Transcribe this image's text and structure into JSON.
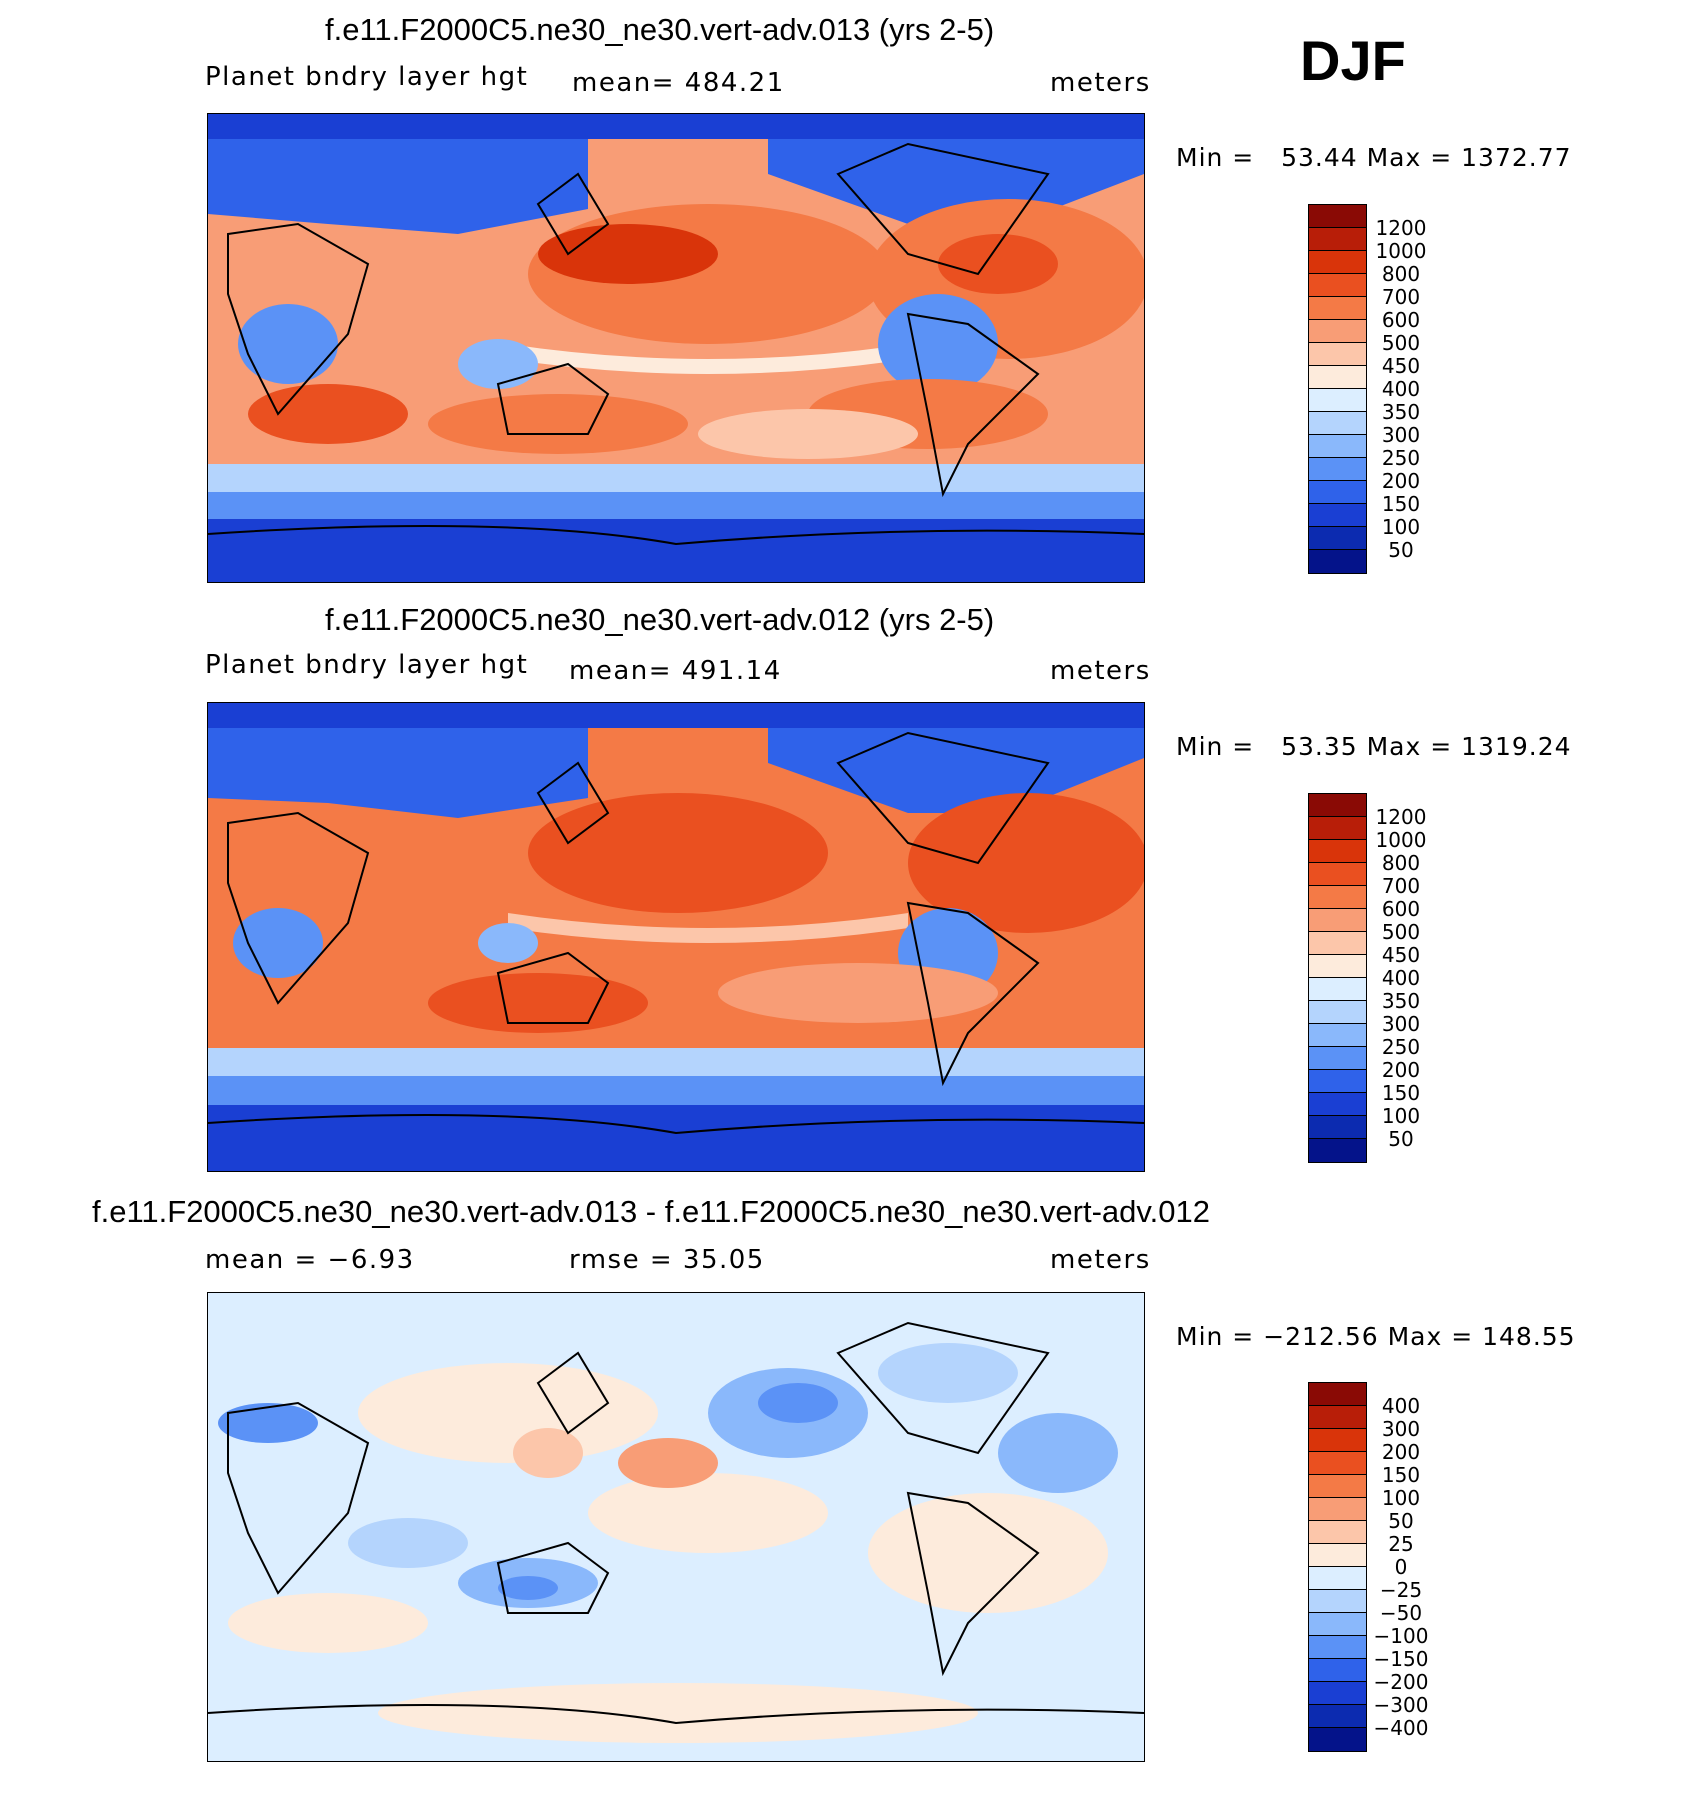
{
  "season": "DJF",
  "panels": [
    {
      "title": "f.e11.F2000C5.ne30_ne30.vert-adv.013 (yrs 2-5)",
      "left_label": "Planet bndry layer hgt",
      "center_label": "mean= 484.21",
      "right_label": "meters",
      "minmax": "Min =   53.44 Max = 1372.77",
      "type": "abs"
    },
    {
      "title": "f.e11.F2000C5.ne30_ne30.vert-adv.012 (yrs 2-5)",
      "left_label": "Planet bndry layer hgt",
      "center_label": "mean= 491.14",
      "right_label": "meters",
      "minmax": "Min =   53.35 Max = 1319.24",
      "type": "abs"
    },
    {
      "title": "f.e11.F2000C5.ne30_ne30.vert-adv.013 - f.e11.F2000C5.ne30_ne30.vert-adv.012",
      "left_label": "mean =   −6.93",
      "center_label": "rmse =   35.05",
      "right_label": "meters",
      "minmax": "Min = −212.56 Max = 148.55",
      "type": "diff"
    }
  ],
  "colorbars": {
    "abs": {
      "labels": [
        "1200",
        "1000",
        "800",
        "700",
        "600",
        "500",
        "450",
        "400",
        "350",
        "300",
        "250",
        "200",
        "150",
        "100",
        "50"
      ],
      "colors": [
        "#8a0a05",
        "#b81e08",
        "#d9340a",
        "#ea5020",
        "#f47a46",
        "#f89d76",
        "#fcc6aa",
        "#fdebdc",
        "#dceeff",
        "#b4d4fd",
        "#8ab8fb",
        "#5b92f6",
        "#2f62ea",
        "#1a3fd3",
        "#0c2bb0",
        "#04138a"
      ]
    },
    "diff": {
      "labels": [
        "400",
        "300",
        "200",
        "150",
        "100",
        "50",
        "25",
        "0",
        "−25",
        "−50",
        "−100",
        "−150",
        "−200",
        "−300",
        "−400"
      ],
      "colors": [
        "#8a0a05",
        "#b81e08",
        "#d9340a",
        "#ea5020",
        "#f47a46",
        "#f89d76",
        "#fcc6aa",
        "#fdebdc",
        "#dceeff",
        "#b4d4fd",
        "#8ab8fb",
        "#5b92f6",
        "#2f62ea",
        "#1a3fd3",
        "#0c2bb0",
        "#04138a"
      ]
    }
  }
}
